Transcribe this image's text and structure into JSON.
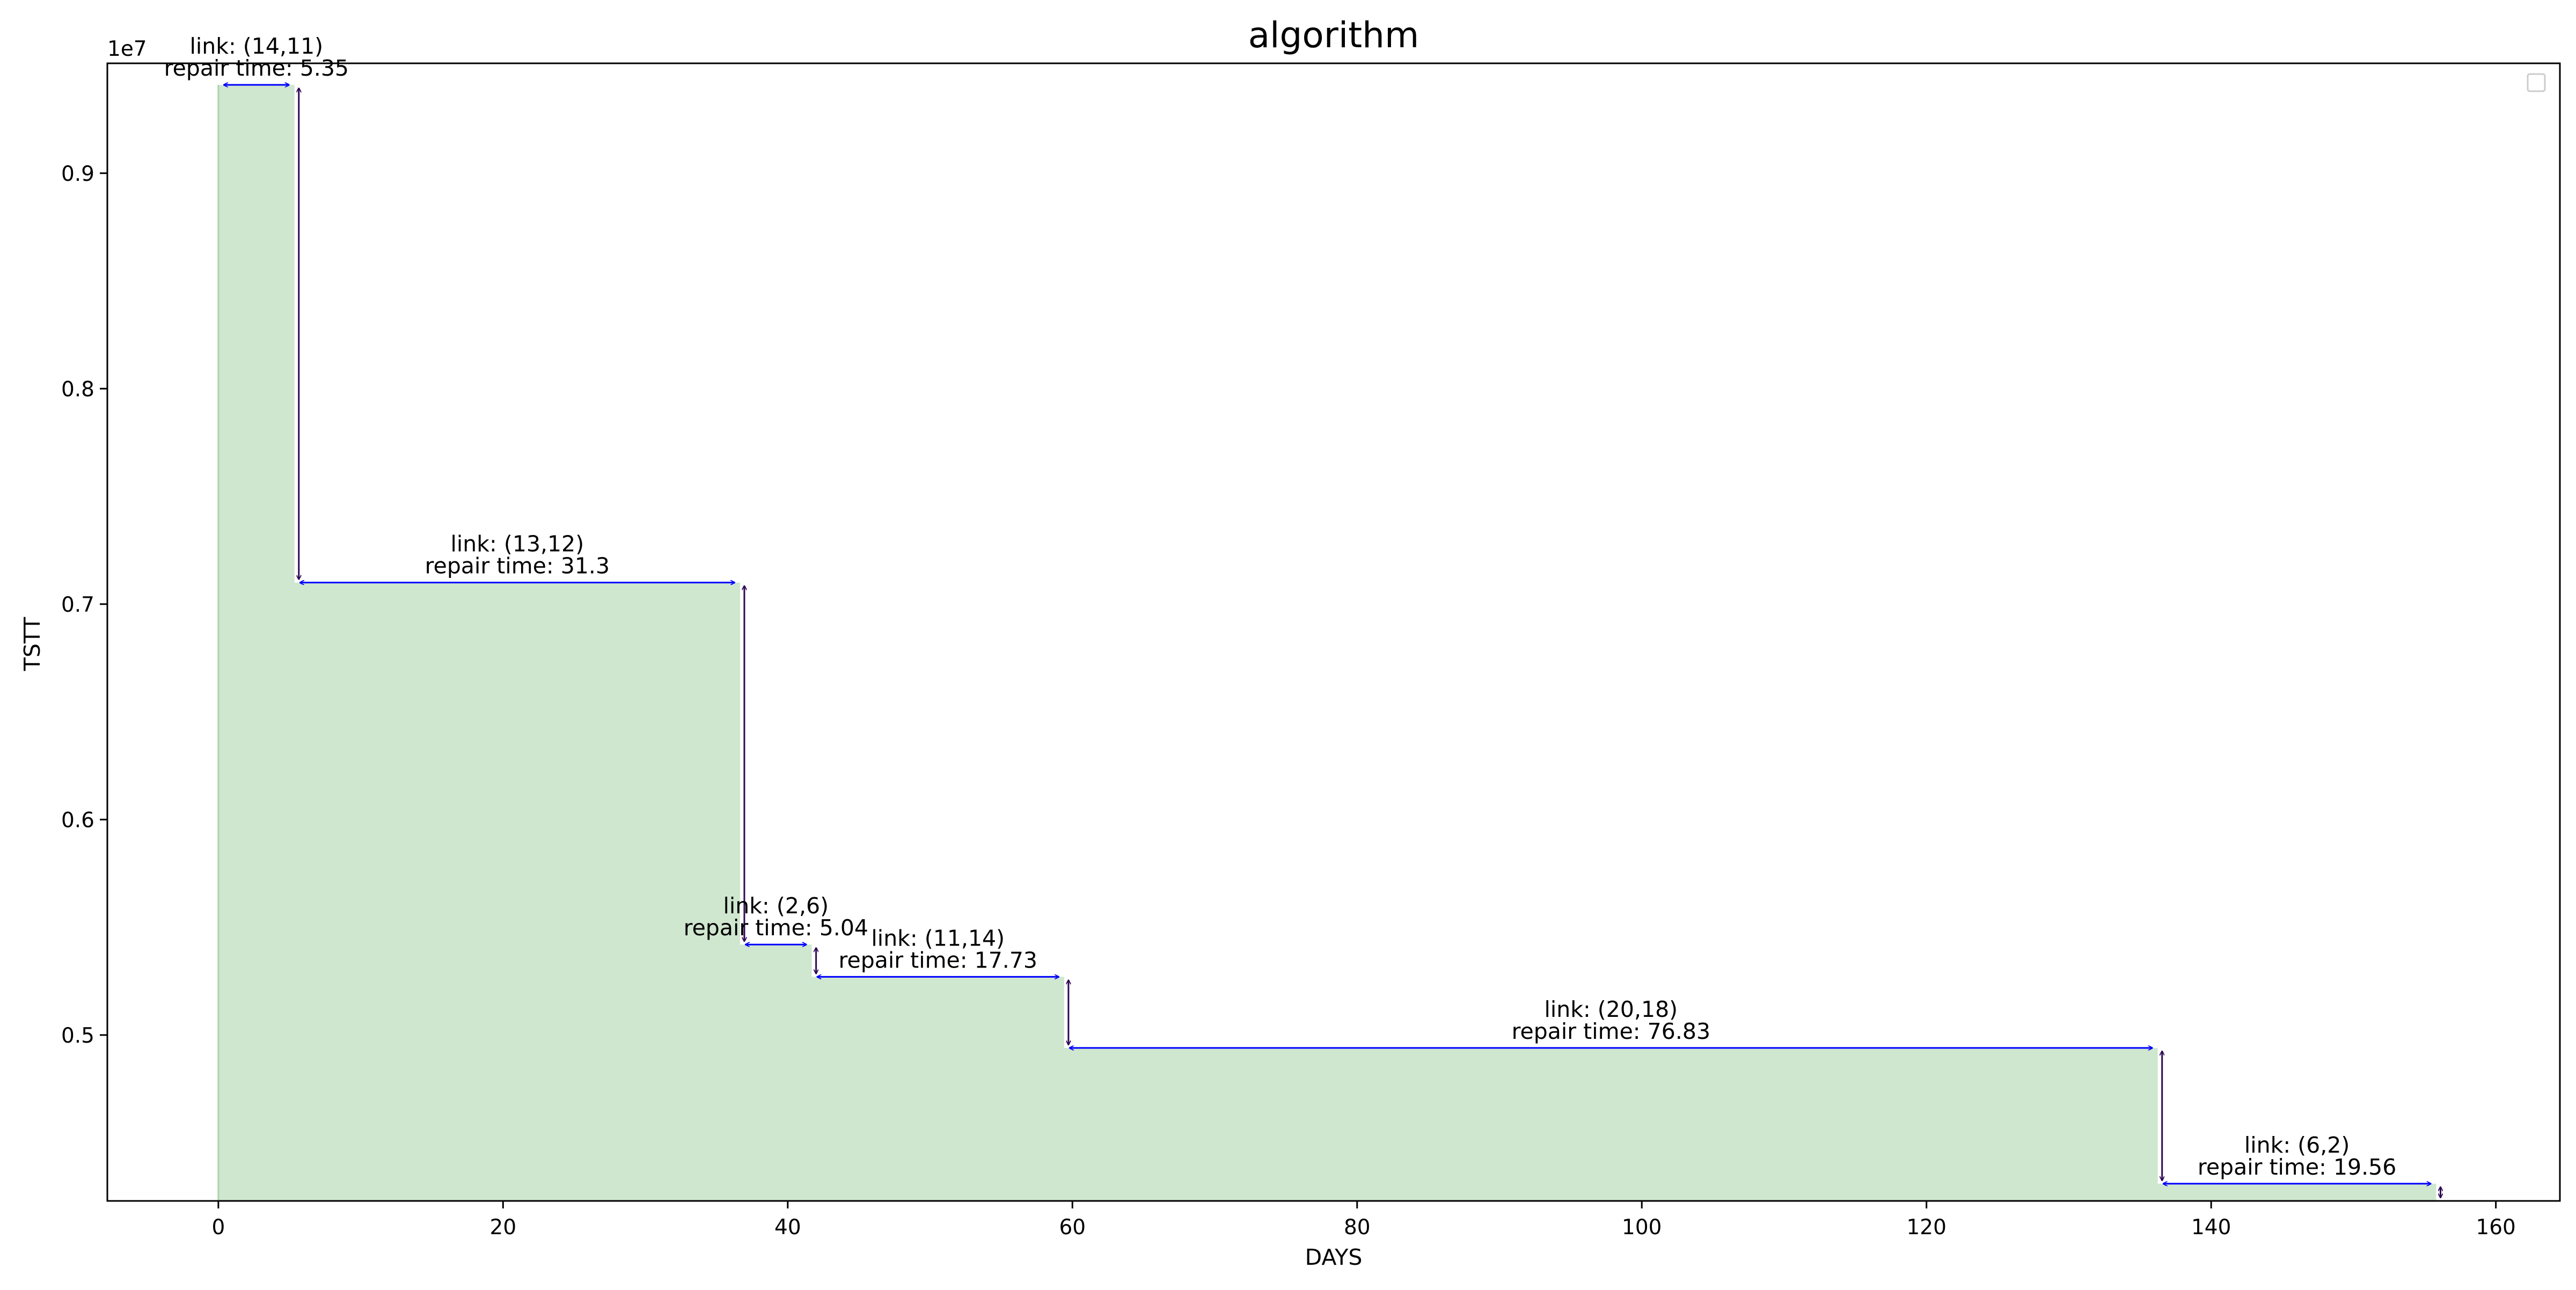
{
  "chart_data": {
    "type": "area",
    "title": "algorithm",
    "xlabel": "DAYS",
    "ylabel": "TSTT",
    "y_offset_text": "1e7",
    "xlim": [
      -7.8,
      164.5
    ],
    "ylim": [
      4230000,
      9510000
    ],
    "x_ticks": [
      0,
      20,
      40,
      60,
      80,
      100,
      120,
      140,
      160
    ],
    "y_ticks": [
      5000000,
      6000000,
      7000000,
      8000000,
      9000000
    ],
    "y_tick_labels": [
      "0.5",
      "0.6",
      "0.7",
      "0.8",
      "0.9"
    ],
    "fill_color": "#cfe6cf",
    "fill_edge_color": "#a9d3a9",
    "horizontal_arrow_color": "#0000ff",
    "vertical_arrow_color": "#2e0854",
    "legend": "top-right (empty)",
    "grid": false,
    "steps": [
      {
        "x_start": 0.0,
        "x_end": 5.35,
        "tstt": 9410000,
        "link": "link: (14,11)",
        "repair": "repair time: 5.35"
      },
      {
        "x_start": 5.35,
        "x_end": 36.65,
        "tstt": 7100000,
        "link": "link: (13,12)",
        "repair": "repair time: 31.3"
      },
      {
        "x_start": 36.65,
        "x_end": 41.69,
        "tstt": 5420000,
        "link": "link: (2,6)",
        "repair": "repair time: 5.04"
      },
      {
        "x_start": 41.69,
        "x_end": 59.42,
        "tstt": 5270000,
        "link": "link: (11,14)",
        "repair": "repair time: 17.73"
      },
      {
        "x_start": 59.42,
        "x_end": 136.25,
        "tstt": 4940000,
        "link": "link: (20,18)",
        "repair": "repair time: 76.83"
      },
      {
        "x_start": 136.25,
        "x_end": 155.81,
        "tstt": 4310000,
        "link": "link: (6,2)",
        "repair": "repair time: 19.56"
      }
    ],
    "final_tstt": 4230000
  }
}
